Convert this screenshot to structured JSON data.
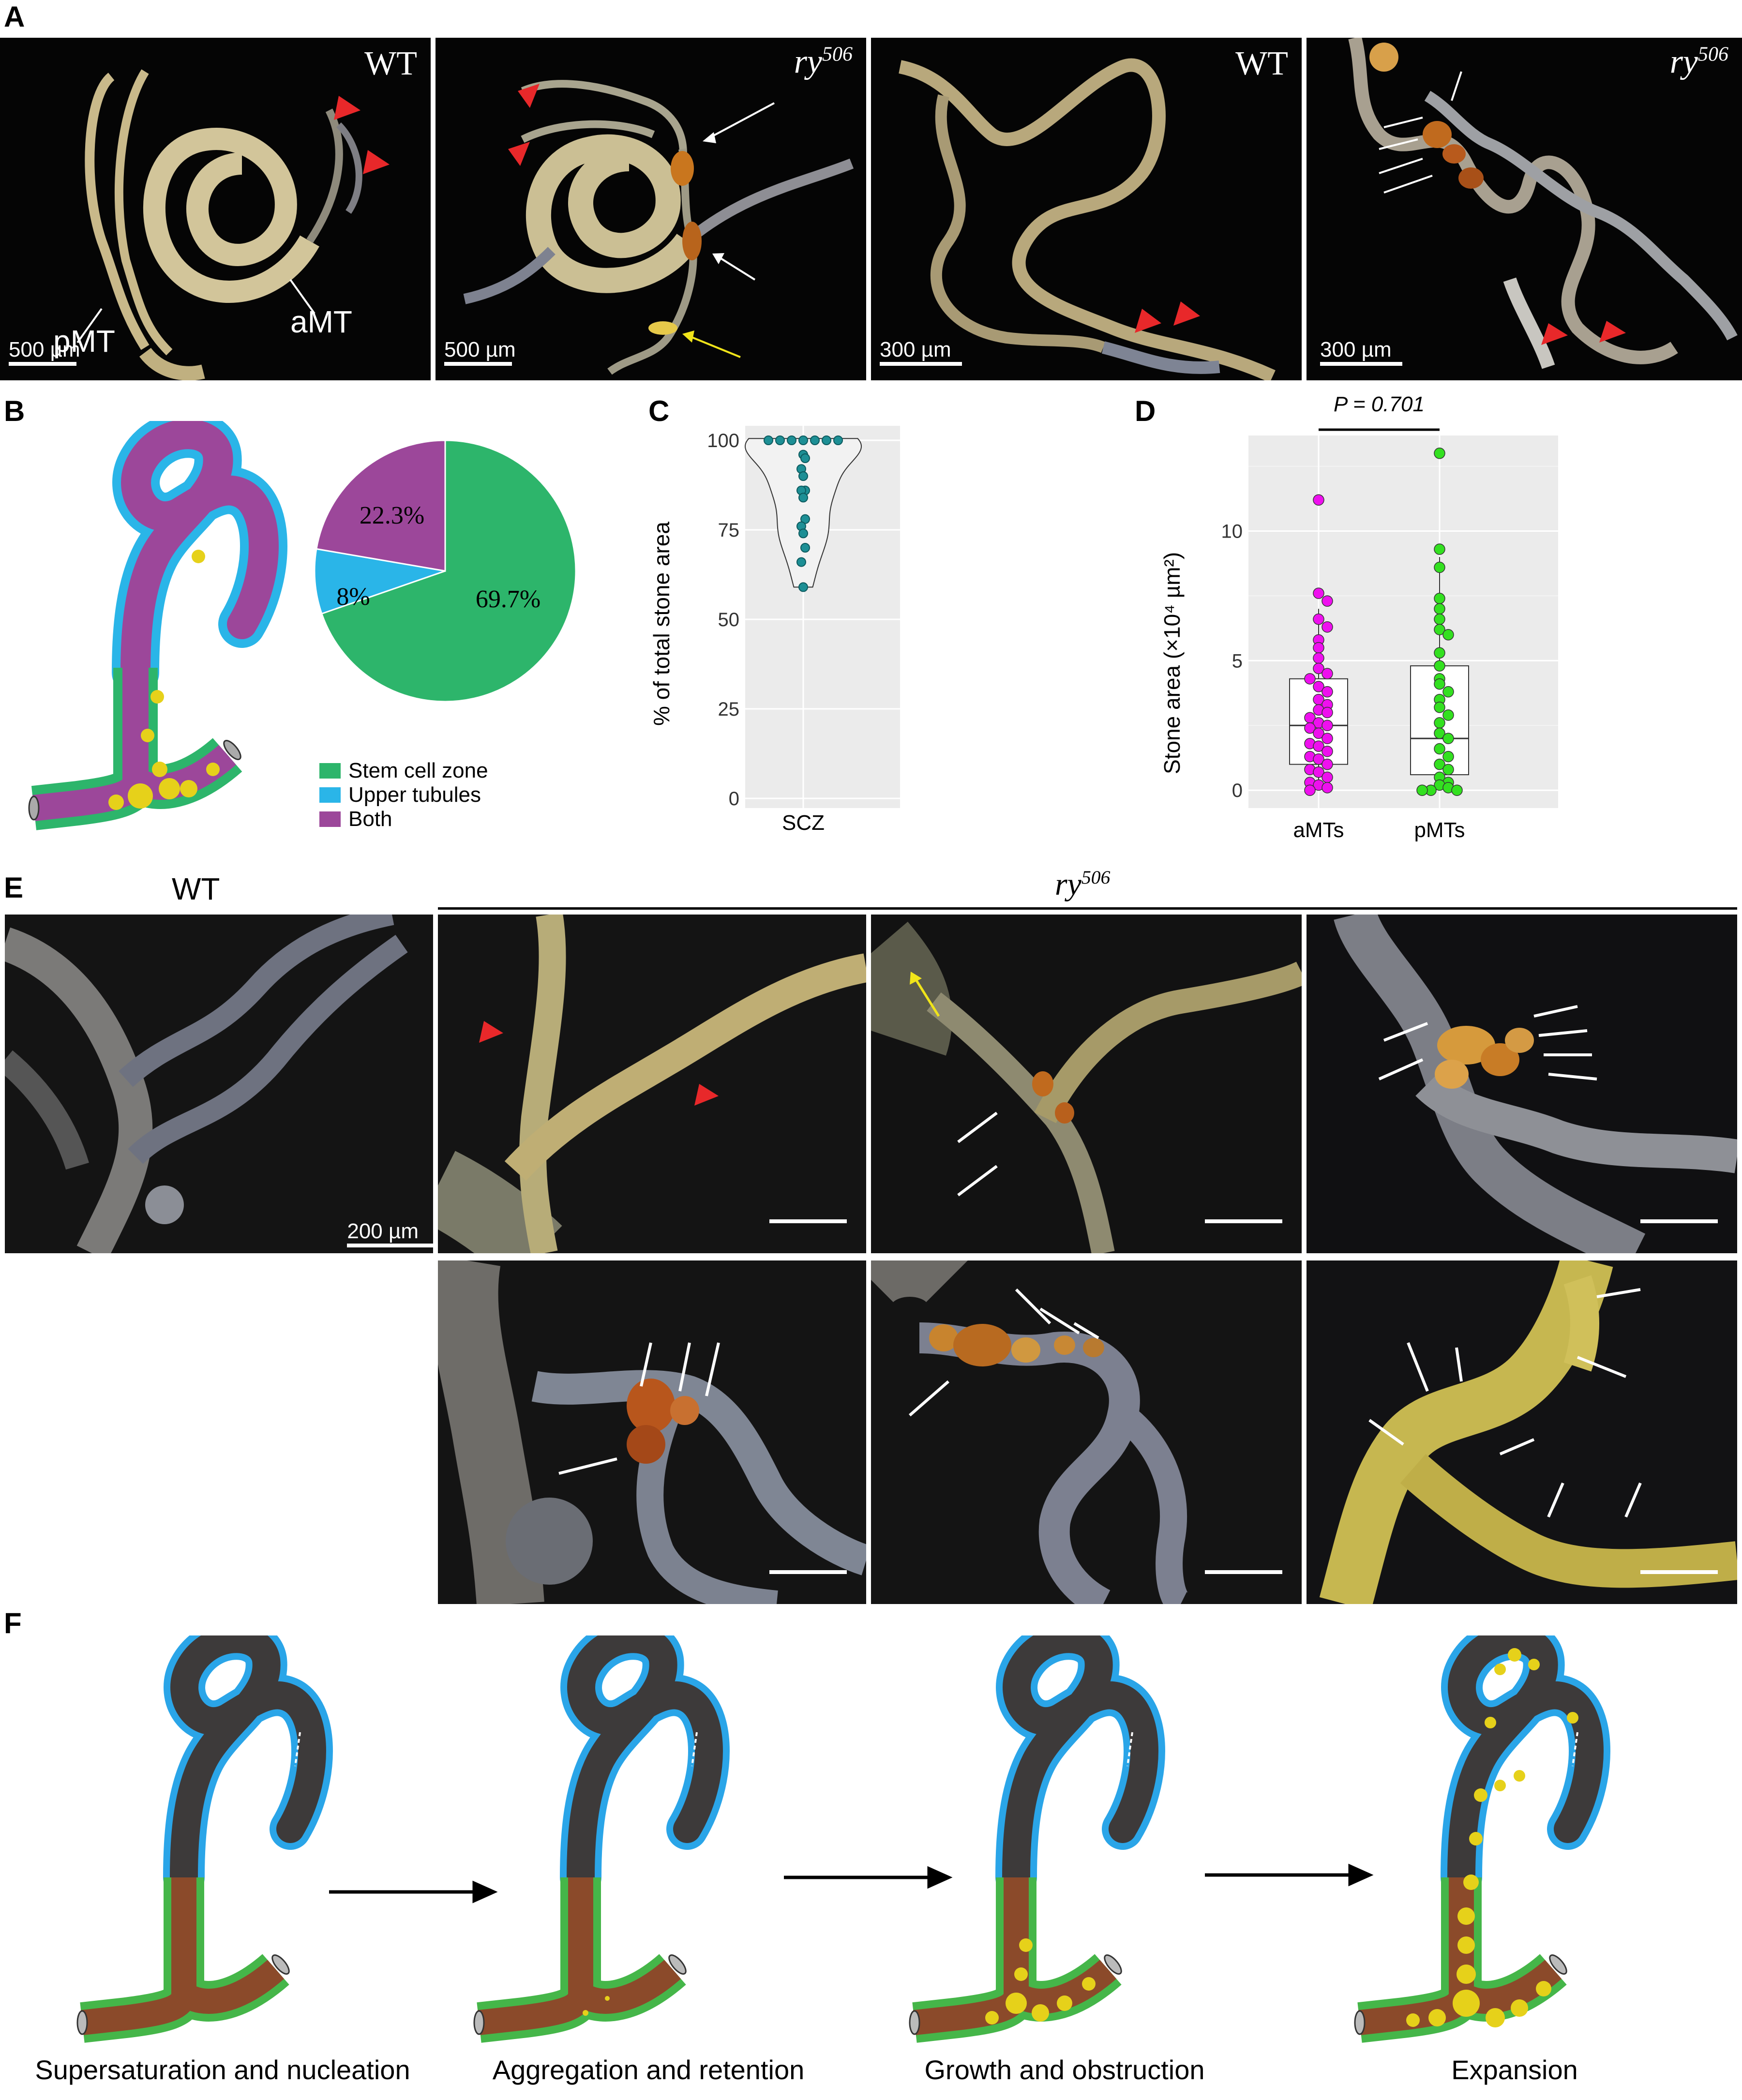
{
  "panel_letters": {
    "A": "A",
    "B": "B",
    "C": "C",
    "D": "D",
    "E": "E",
    "F": "F"
  },
  "panel_a": {
    "images": [
      {
        "genotype": "WT",
        "scale": "500 µm",
        "labels": [
          "pMT",
          "aMT"
        ]
      },
      {
        "genotype_base": "ry",
        "genotype_sup": "506",
        "scale": "500 µm"
      },
      {
        "genotype": "WT",
        "scale": "300 µm"
      },
      {
        "genotype_base": "ry",
        "genotype_sup": "506",
        "scale": "300 µm"
      }
    ]
  },
  "panel_b": {
    "chart_data": {
      "type": "pie",
      "slices": [
        {
          "label": "Stem cell zone",
          "value": 69.7,
          "text": "69.7%",
          "color": "#2db56b"
        },
        {
          "label": "Upper tubules",
          "value": 8.0,
          "text": "8%",
          "color": "#2ab5e8"
        },
        {
          "label": "Both",
          "value": 22.3,
          "text": "22.3%",
          "color": "#9c479a"
        }
      ],
      "legend": [
        "Stem cell zone",
        "Upper tubules",
        "Both"
      ]
    }
  },
  "panel_c": {
    "chart_data": {
      "type": "violin",
      "ylabel": "% of total stone area",
      "xcat": "SCZ",
      "yticks": [
        0,
        25,
        50,
        75,
        100
      ],
      "ylim": [
        0,
        100
      ],
      "points": [
        100,
        100,
        100,
        100,
        100,
        100,
        100,
        96,
        95,
        92,
        90,
        86,
        86,
        84,
        78,
        76,
        74,
        70,
        66,
        59
      ],
      "point_color": "#1d8f95"
    }
  },
  "panel_d": {
    "chart_data": {
      "type": "box",
      "ylabel": "Stone area  (×10⁴ µm²)",
      "categories": [
        "aMTs",
        "pMTs"
      ],
      "pvalue": "P = 0.701",
      "yticks": [
        0,
        5,
        10
      ],
      "ylim": [
        -0.5,
        13.5
      ],
      "series": [
        {
          "name": "aMTs",
          "color": "#ee10ee",
          "q1": 1.0,
          "median": 2.5,
          "q3": 4.3,
          "whisker_low": 0.0,
          "whisker_high": 7.0,
          "mean": 3.0,
          "points": [
            11.2,
            7.6,
            7.3,
            6.6,
            6.3,
            5.8,
            5.5,
            5.1,
            4.7,
            4.5,
            4.3,
            4.0,
            3.8,
            3.5,
            3.3,
            3.1,
            3.0,
            2.8,
            2.6,
            2.5,
            2.4,
            2.2,
            2.0,
            1.8,
            1.7,
            1.5,
            1.3,
            1.2,
            1.0,
            0.8,
            0.7,
            0.5,
            0.3,
            0.2,
            0.1,
            0.0
          ]
        },
        {
          "name": "pMTs",
          "color": "#33e020",
          "q1": 0.6,
          "median": 2.0,
          "q3": 4.8,
          "whisker_low": 0.0,
          "whisker_high": 9.0,
          "mean": 3.1,
          "points": [
            13.0,
            9.3,
            8.6,
            7.4,
            7.0,
            6.6,
            6.2,
            6.0,
            5.3,
            4.8,
            4.3,
            4.1,
            3.8,
            3.5,
            3.2,
            2.9,
            2.6,
            2.2,
            2.0,
            1.6,
            1.3,
            1.0,
            0.8,
            0.5,
            0.3,
            0.2,
            0.1,
            0.0,
            0.0,
            0.0
          ]
        }
      ]
    }
  },
  "panel_e": {
    "wt_label": "WT",
    "mut_base": "ry",
    "mut_sup": "506",
    "scale": "200 µm"
  },
  "panel_f": {
    "captions": [
      "Supersaturation and nucleation",
      "Aggregation and retention",
      "Growth and obstruction",
      "Expansion"
    ]
  },
  "colors": {
    "stem_zone": "#2db56b",
    "upper": "#2ab5e8",
    "both": "#9c479a",
    "stone": "#e6d11a",
    "arrow_red": "#e8282a",
    "arrow_yellow": "#f0e41a"
  }
}
